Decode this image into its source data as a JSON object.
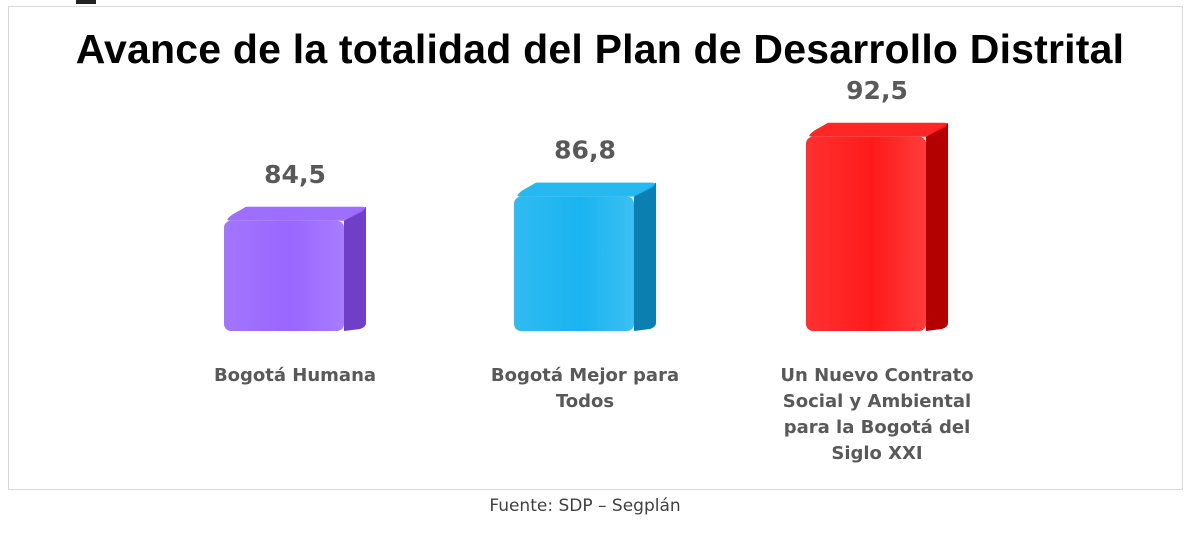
{
  "chart_data": {
    "type": "bar",
    "title": "Avance de la totalidad del Plan de Desarrollo Distrital",
    "categories": [
      [
        "Bogotá Humana"
      ],
      [
        "Bogotá Mejor para",
        "Todos"
      ],
      [
        "Un Nuevo Contrato",
        "Social y Ambiental",
        "para la Bogotá del",
        "Siglo XXI"
      ]
    ],
    "values": [
      84.5,
      86.8,
      92.5
    ],
    "value_labels": [
      "84,5",
      "86,8",
      "92,5"
    ],
    "bar_colors": [
      "#9966ff",
      "#19b4f0",
      "#ff1a1a"
    ],
    "bar_side_colors": [
      "#6f3fc8",
      "#0a7fb0",
      "#b30000"
    ],
    "xlabel": "",
    "ylabel": "",
    "grid": false,
    "legend": "none"
  },
  "source": "Fuente: SDP – Segplán"
}
